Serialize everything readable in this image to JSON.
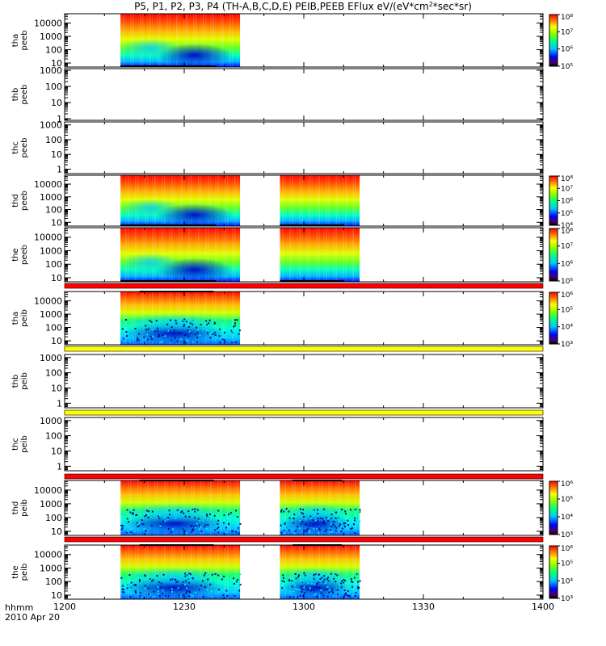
{
  "chart_data": {
    "type": "heatmap",
    "title": "P5, P1, P2, P3, P4 (TH-A,B,C,D,E) PEIB,PEEB EFlux eV/(eV*cm",
    "title_sup": "2",
    "title_tail": "*sec*sr)",
    "date_label": "2010 Apr 20",
    "x_axis": {
      "label": "hhmm",
      "ticks": [
        "1200",
        "1230",
        "1300",
        "1330",
        "1400"
      ],
      "range_minutes": [
        0,
        120
      ]
    },
    "panels": [
      {
        "id": "tha-peeb",
        "ylabel": [
          "tha",
          "peeb"
        ],
        "yticks": [
          "10000",
          "1000",
          "100",
          "10"
        ],
        "ylog_range": [
          0.7,
          4.7
        ],
        "data_intervals": [
          [
            14,
            44
          ]
        ],
        "colorbar": {
          "ticks": [
            "10⁸",
            "10⁷",
            "10⁶",
            "10⁵"
          ],
          "range_log": [
            5,
            8
          ]
        },
        "palette": "electron"
      },
      {
        "id": "thb-peeb",
        "ylabel": [
          "thb",
          "peeb"
        ],
        "yticks": [
          "1000",
          "100",
          "10",
          "1"
        ],
        "ylog_range": [
          -0.1,
          3.1
        ],
        "data_intervals": []
      },
      {
        "id": "thc-peeb",
        "ylabel": [
          "thc",
          "peeb"
        ],
        "yticks": [
          "1000",
          "100",
          "10",
          "1"
        ],
        "ylog_range": [
          -0.3,
          3.2
        ],
        "data_intervals": []
      },
      {
        "id": "thd-peeb",
        "ylabel": [
          "thd",
          "peeb"
        ],
        "yticks": [
          "10000",
          "1000",
          "100",
          "10"
        ],
        "ylog_range": [
          0.7,
          4.7
        ],
        "data_intervals": [
          [
            14,
            44
          ],
          [
            54,
            74
          ]
        ],
        "colorbar": {
          "ticks": [
            "10⁸",
            "10⁷",
            "10⁶",
            "10⁵",
            "10⁴"
          ],
          "range_log": [
            4,
            8
          ]
        },
        "palette": "electron"
      },
      {
        "id": "the-peeb",
        "ylabel": [
          "the",
          "peeb"
        ],
        "yticks": [
          "10000",
          "1000",
          "100",
          "10"
        ],
        "ylog_range": [
          0.7,
          4.7
        ],
        "data_intervals": [
          [
            14,
            44
          ],
          [
            54,
            74
          ]
        ],
        "colorbar": {
          "ticks": [
            "10⁸",
            "10⁷",
            "10⁶",
            "10⁵"
          ],
          "range_log": [
            5,
            8
          ]
        },
        "palette": "electron"
      },
      {
        "id": "tha-peib",
        "ylabel": [
          "tha",
          "peib"
        ],
        "yticks": [
          "10000",
          "1000",
          "100",
          "10"
        ],
        "ylog_range": [
          0.7,
          4.7
        ],
        "data_intervals": [
          [
            14,
            44
          ]
        ],
        "colorbar": {
          "ticks": [
            "10⁶",
            "10⁵",
            "10⁴",
            "10³"
          ],
          "range_log": [
            3,
            6
          ]
        },
        "palette": "ion"
      },
      {
        "id": "thb-peib",
        "ylabel": [
          "thb",
          "peib"
        ],
        "yticks": [
          "1000",
          "100",
          "10",
          "1"
        ],
        "ylog_range": [
          -0.3,
          3.2
        ],
        "data_intervals": []
      },
      {
        "id": "thc-peib",
        "ylabel": [
          "thc",
          "peib"
        ],
        "yticks": [
          "1000",
          "100",
          "10",
          "1"
        ],
        "ylog_range": [
          -0.3,
          3.2
        ],
        "data_intervals": []
      },
      {
        "id": "thd-peib",
        "ylabel": [
          "thd",
          "peib"
        ],
        "yticks": [
          "10000",
          "1000",
          "100",
          "10"
        ],
        "ylog_range": [
          0.7,
          4.7
        ],
        "data_intervals": [
          [
            14,
            44
          ],
          [
            54,
            74
          ]
        ],
        "colorbar": {
          "ticks": [
            "10⁶",
            "10⁵",
            "10⁴",
            "10³"
          ],
          "range_log": [
            3,
            6
          ]
        },
        "palette": "ion"
      },
      {
        "id": "the-peib",
        "ylabel": [
          "the",
          "peib"
        ],
        "yticks": [
          "10000",
          "1000",
          "100",
          "10"
        ],
        "ylog_range": [
          0.7,
          4.7
        ],
        "data_intervals": [
          [
            14,
            44
          ],
          [
            54,
            74
          ]
        ],
        "colorbar": {
          "ticks": [
            "10⁶",
            "10⁵",
            "10⁴",
            "10³"
          ],
          "range_log": [
            3,
            6
          ]
        },
        "palette": "ion"
      }
    ],
    "status_bars": [
      {
        "after_panel": "the-peeb",
        "color": "#ff0000"
      },
      {
        "after_panel": "tha-peib",
        "color": "#ffff00"
      },
      {
        "after_panel": "thb-peib",
        "color": "#ffff00"
      },
      {
        "after_panel": "thc-peib",
        "color": "#ff0000"
      },
      {
        "after_panel": "thd-peib",
        "color": "#ff0000"
      }
    ]
  }
}
